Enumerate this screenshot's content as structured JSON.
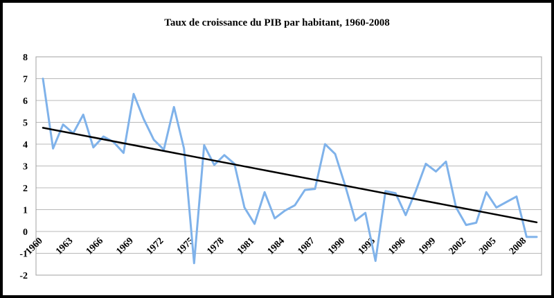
{
  "chart_data": {
    "type": "line",
    "title": "Taux de croissance du PIB par habitant, 1960-2008",
    "xlabel": "",
    "ylabel": "",
    "ylim": [
      -2,
      8
    ],
    "yticks": [
      -2,
      -1,
      0,
      1,
      2,
      3,
      4,
      5,
      6,
      7,
      8
    ],
    "xlim": [
      1960,
      2009
    ],
    "xticks": [
      1960,
      1963,
      1966,
      1969,
      1972,
      1975,
      1978,
      1981,
      1984,
      1987,
      1990,
      1993,
      1996,
      1999,
      2002,
      2005,
      2008
    ],
    "grid": true,
    "legend": "none",
    "series": [
      {
        "color": "#7fb2ea",
        "x": [
          1960,
          1961,
          1962,
          1963,
          1964,
          1965,
          1966,
          1967,
          1968,
          1969,
          1970,
          1971,
          1972,
          1973,
          1974,
          1975,
          1976,
          1977,
          1978,
          1979,
          1980,
          1981,
          1982,
          1983,
          1984,
          1985,
          1986,
          1987,
          1988,
          1989,
          1990,
          1991,
          1992,
          1993,
          1994,
          1995,
          1996,
          1997,
          1998,
          1999,
          2000,
          2001,
          2002,
          2003,
          2004,
          2005,
          2006,
          2007,
          2008,
          2009
        ],
        "values": [
          7.0,
          3.8,
          4.9,
          4.5,
          5.35,
          3.85,
          4.35,
          4.1,
          3.6,
          6.3,
          5.15,
          4.2,
          3.75,
          5.7,
          3.8,
          -1.45,
          3.95,
          3.05,
          3.5,
          3.1,
          1.1,
          0.35,
          1.8,
          0.6,
          0.95,
          1.2,
          1.9,
          1.95,
          4.0,
          3.55,
          2.1,
          0.5,
          0.85,
          -1.35,
          1.85,
          1.75,
          0.75,
          1.85,
          3.1,
          2.75,
          3.2,
          1.1,
          0.3,
          0.4,
          1.8,
          1.1,
          1.35,
          1.6,
          -0.25,
          -0.25
        ]
      },
      {
        "color": "#000000",
        "trend": true,
        "x": [
          1960,
          2009
        ],
        "values": [
          4.75,
          0.42
        ]
      }
    ]
  }
}
